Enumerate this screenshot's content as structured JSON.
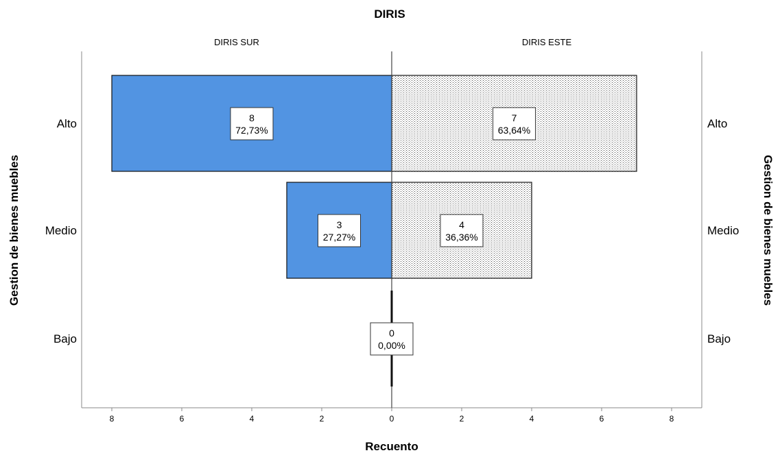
{
  "chart_data": {
    "type": "bar",
    "orientation": "horizontal",
    "layout": "population-pyramid",
    "title": "DIRIS",
    "xlabel": "Recuento",
    "ylabel": "Gestion de bienes muebles",
    "categories": [
      "Alto",
      "Medio",
      "Bajo"
    ],
    "xlim": [
      0,
      8
    ],
    "x_ticks": [
      8,
      6,
      4,
      2,
      0,
      2,
      4,
      6,
      8
    ],
    "grid": false,
    "series": [
      {
        "name": "DIRIS SUR",
        "side": "left",
        "color": "#5294E2",
        "values": [
          8,
          3,
          0
        ],
        "labels": [
          "72,73%",
          "27,27%",
          "0,00%"
        ]
      },
      {
        "name": "DIRIS ESTE",
        "side": "right",
        "color": "#FFFFFF",
        "pattern": "dotted",
        "values": [
          7,
          4,
          0
        ],
        "labels": [
          "63,64%",
          "36,36%",
          ""
        ]
      }
    ]
  }
}
